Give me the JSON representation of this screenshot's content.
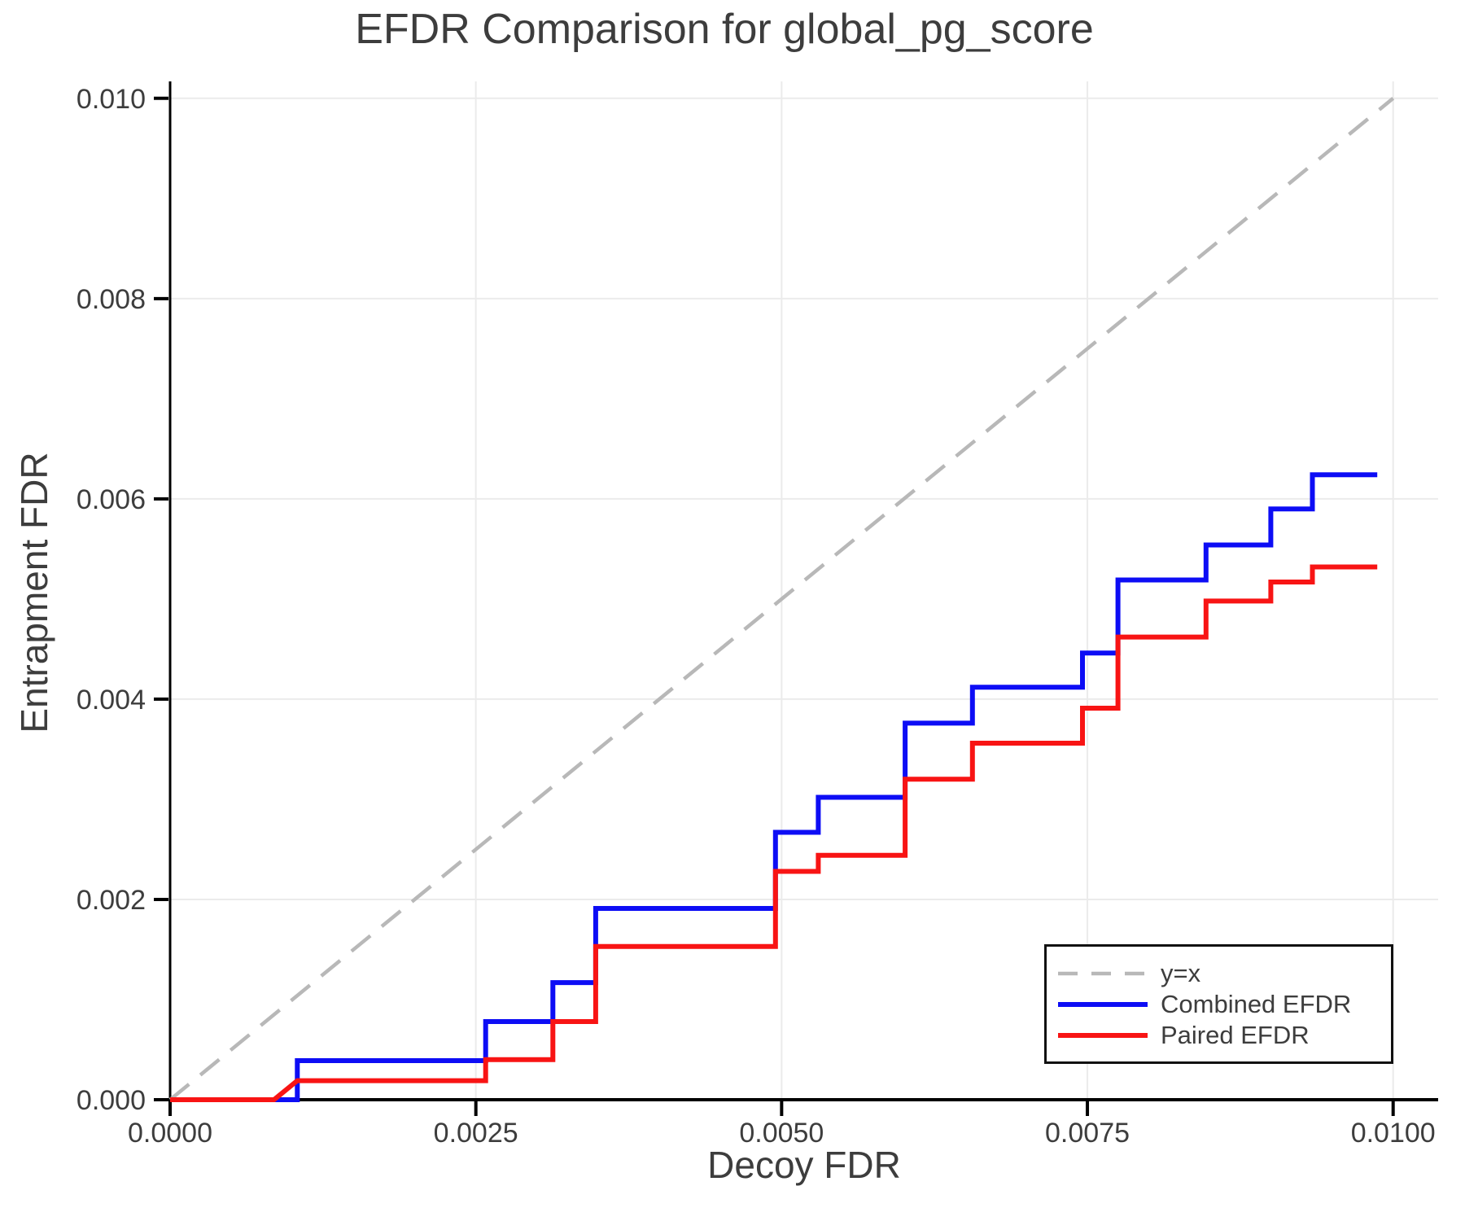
{
  "chart_data": {
    "type": "line",
    "title": "EFDR Comparison for global_pg_score",
    "xlabel": "Decoy FDR",
    "ylabel": "Entrapment FDR",
    "xlim": [
      0,
      0.010368
    ],
    "ylim": [
      0,
      0.010169
    ],
    "grid": true,
    "legend_position": "lower right",
    "x_ticks": {
      "values": [
        0,
        0.0025,
        0.005,
        0.0075,
        0.01
      ],
      "labels": [
        "0.0000",
        "0.0025",
        "0.0050",
        "0.0075",
        "0.0100"
      ]
    },
    "y_ticks": {
      "values": [
        0,
        0.002,
        0.004,
        0.006,
        0.008,
        0.01
      ],
      "labels": [
        "0.000",
        "0.002",
        "0.004",
        "0.006",
        "0.008",
        "0.010"
      ]
    },
    "reference_line": {
      "label": "y=x",
      "style": "dashed",
      "color": "#b8b8b8",
      "points": [
        [
          0,
          0
        ],
        [
          0.01,
          0.01
        ]
      ]
    },
    "series": [
      {
        "name": "Combined EFDR",
        "color": "#0d0df5",
        "points": [
          [
            0,
            0
          ],
          [
            0.00104,
            0
          ],
          [
            0.00104,
            0.00039
          ],
          [
            0.00258,
            0.00039
          ],
          [
            0.00258,
            0.00078
          ],
          [
            0.00313,
            0.00078
          ],
          [
            0.00313,
            0.00117
          ],
          [
            0.00348,
            0.00117
          ],
          [
            0.00348,
            0.00191
          ],
          [
            0.00495,
            0.00191
          ],
          [
            0.00495,
            0.00267
          ],
          [
            0.0053,
            0.00267
          ],
          [
            0.0053,
            0.00302
          ],
          [
            0.00601,
            0.00302
          ],
          [
            0.00601,
            0.00376
          ],
          [
            0.00656,
            0.00376
          ],
          [
            0.00656,
            0.00412
          ],
          [
            0.00746,
            0.00412
          ],
          [
            0.00746,
            0.00446
          ],
          [
            0.00775,
            0.00446
          ],
          [
            0.00775,
            0.00519
          ],
          [
            0.00847,
            0.00519
          ],
          [
            0.00847,
            0.00554
          ],
          [
            0.009,
            0.00554
          ],
          [
            0.009,
            0.0059
          ],
          [
            0.00934,
            0.0059
          ],
          [
            0.00934,
            0.00624
          ],
          [
            0.00987,
            0.00624
          ]
        ]
      },
      {
        "name": "Paired EFDR",
        "color": "#f81414",
        "points": [
          [
            0,
            0
          ],
          [
            0.00085,
            0
          ],
          [
            0.00104,
            0.00019
          ],
          [
            0.00258,
            0.00019
          ],
          [
            0.00258,
            0.0004
          ],
          [
            0.00313,
            0.0004
          ],
          [
            0.00313,
            0.00078
          ],
          [
            0.00348,
            0.00078
          ],
          [
            0.00348,
            0.00153
          ],
          [
            0.00495,
            0.00153
          ],
          [
            0.00495,
            0.00228
          ],
          [
            0.0053,
            0.00228
          ],
          [
            0.0053,
            0.00244
          ],
          [
            0.00601,
            0.00244
          ],
          [
            0.00601,
            0.0032
          ],
          [
            0.00656,
            0.0032
          ],
          [
            0.00656,
            0.00356
          ],
          [
            0.00746,
            0.00356
          ],
          [
            0.00746,
            0.00391
          ],
          [
            0.00775,
            0.00391
          ],
          [
            0.00775,
            0.00462
          ],
          [
            0.00847,
            0.00462
          ],
          [
            0.00847,
            0.00498
          ],
          [
            0.009,
            0.00498
          ],
          [
            0.009,
            0.00517
          ],
          [
            0.00934,
            0.00517
          ],
          [
            0.00934,
            0.00532
          ],
          [
            0.00987,
            0.00532
          ]
        ]
      }
    ],
    "colors": {
      "grid": "#ebebeb",
      "spine": "#000000",
      "text": "#3d3d3d",
      "background": "#ffffff"
    }
  }
}
